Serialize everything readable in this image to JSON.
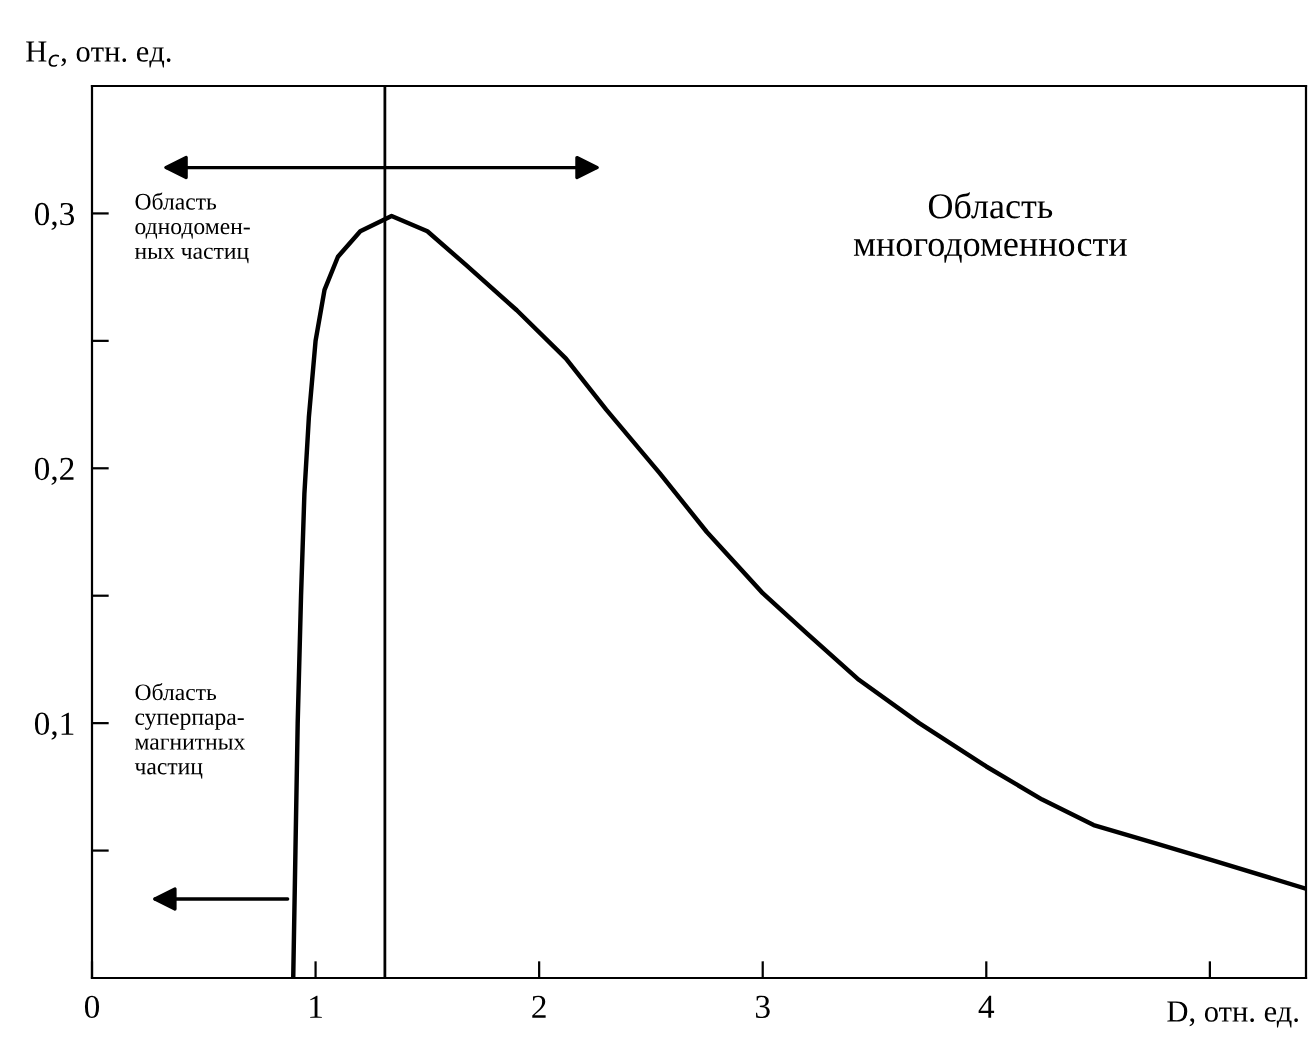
{
  "chart_data": {
    "type": "line",
    "xlabel": "D, отн. ед.",
    "ylabel": "H$_{c}$, отн. ед.",
    "x": [
      0.9,
      0.91,
      0.92,
      0.935,
      0.95,
      0.97,
      1.0,
      1.04,
      1.1,
      1.2,
      1.34,
      1.5,
      1.67,
      1.9,
      2.12,
      2.3,
      2.54,
      2.75,
      3.0,
      3.2,
      3.43,
      3.7,
      4.0,
      4.25,
      4.48,
      4.75,
      5.02,
      5.43
    ],
    "series": [
      {
        "color": "#000000",
        "values": [
          0,
          0.05,
          0.1,
          0.15,
          0.19,
          0.22,
          0.25,
          0.27,
          0.283,
          0.293,
          0.299,
          0.293,
          0.28,
          0.262,
          0.243,
          0.223,
          0.198,
          0.175,
          0.151,
          0.135,
          0.117,
          0.1,
          0.083,
          0.07,
          0.06,
          0.053,
          0.046,
          0.035
        ]
      }
    ],
    "xlim": [
      0,
      5.43
    ],
    "ylim": [
      0,
      0.35
    ],
    "xticks": [
      0,
      1,
      2,
      3,
      4,
      {
        "value": 5,
        "label": null
      }
    ],
    "yticks": [
      {
        "value": 0.05,
        "label": null
      },
      {
        "value": 0.1,
        "label": "0,1"
      },
      {
        "value": 0.15,
        "label": null
      },
      {
        "value": 0.2,
        "label": "0,2"
      },
      {
        "value": 0.25,
        "label": null
      },
      {
        "value": 0.3,
        "label": "0,3"
      }
    ],
    "ref_lines": [
      {
        "axis": "x",
        "value": 1.31,
        "color": "#000000"
      }
    ],
    "annotations": [
      "Область\nоднодомен-\nных частиц",
      "Область\nсуперпара-\nмагнитных\nчастиц",
      "Область\nмногодоменности"
    ],
    "grid": false,
    "legend": false,
    "marker": "none",
    "line_style": "solid"
  }
}
